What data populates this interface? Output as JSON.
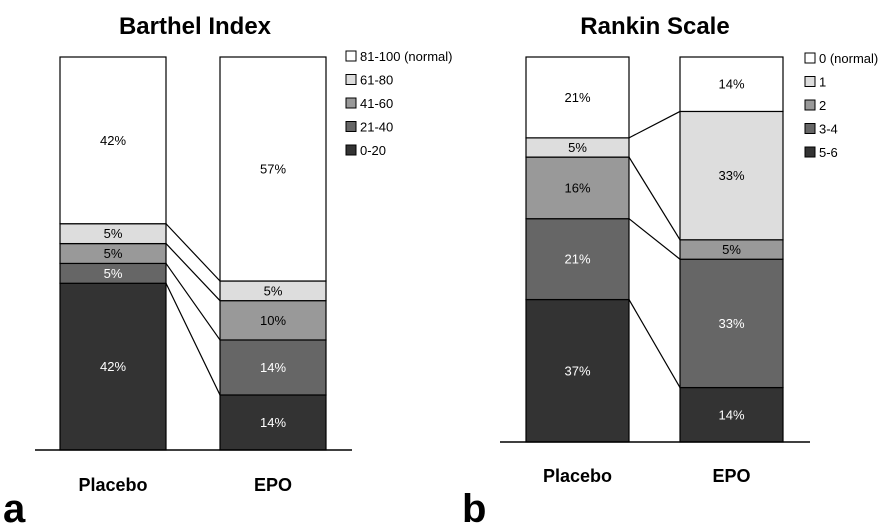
{
  "chart_data": [
    {
      "type": "bar",
      "stacked": true,
      "normalized": true,
      "title": "Barthel Index",
      "panel_label": "a",
      "categories": [
        "Placebo",
        "EPO"
      ],
      "series": [
        {
          "name": "0-20",
          "color": "#333333",
          "values": [
            42,
            14
          ]
        },
        {
          "name": "21-40",
          "color": "#666666",
          "values": [
            5,
            14
          ]
        },
        {
          "name": "41-60",
          "color": "#999999",
          "values": [
            5,
            10
          ]
        },
        {
          "name": "61-80",
          "color": "#dddddd",
          "values": [
            5,
            5
          ]
        },
        {
          "name": "81-100 (normal)",
          "color": "#ffffff",
          "values": [
            42,
            57
          ]
        }
      ],
      "labels": [
        [
          "42%",
          "14%"
        ],
        [
          "5%",
          "14%"
        ],
        [
          "5%",
          "10%"
        ],
        [
          "5%",
          "5%"
        ],
        [
          "42%",
          "57%"
        ]
      ],
      "connecting_lines": true,
      "legend_position": "top-right"
    },
    {
      "type": "bar",
      "stacked": true,
      "normalized": true,
      "title": "Rankin Scale",
      "panel_label": "b",
      "categories": [
        "Placebo",
        "EPO"
      ],
      "series": [
        {
          "name": "5-6",
          "color": "#333333",
          "values": [
            37,
            14
          ]
        },
        {
          "name": "3-4",
          "color": "#666666",
          "values": [
            21,
            33
          ]
        },
        {
          "name": "2",
          "color": "#999999",
          "values": [
            16,
            5
          ]
        },
        {
          "name": "1",
          "color": "#dddddd",
          "values": [
            5,
            33
          ]
        },
        {
          "name": "0 (normal)",
          "color": "#ffffff",
          "values": [
            21,
            14
          ]
        }
      ],
      "labels": [
        [
          "37%",
          "14%"
        ],
        [
          "21%",
          "33%"
        ],
        [
          "16%",
          "5%"
        ],
        [
          "5%",
          "33%"
        ],
        [
          "21%",
          "14%"
        ]
      ],
      "connecting_lines": true,
      "legend_position": "top-right"
    }
  ]
}
